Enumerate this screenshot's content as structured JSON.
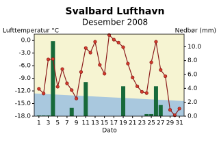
{
  "chart_data": {
    "type": "combo",
    "title": "Svalbard Lufthavn",
    "subtitle": "Desember 2008",
    "y_label": "Lufttemperatur °C",
    "y2_label": "Nedbør (mm)",
    "x_label": "Dato",
    "x": [
      1,
      2,
      3,
      4,
      5,
      6,
      7,
      8,
      9,
      10,
      11,
      12,
      13,
      14,
      15,
      16,
      17,
      18,
      19,
      20,
      21,
      22,
      23,
      24,
      25,
      26,
      27,
      28,
      29,
      30,
      31
    ],
    "xlim": [
      0,
      32
    ],
    "xticks": [
      1,
      3,
      5,
      7,
      9,
      11,
      13,
      15,
      17,
      19,
      21,
      23,
      25,
      27,
      29,
      31
    ],
    "ylim": [
      -18,
      1.5
    ],
    "yticks": [
      {
        "value": 0,
        "label": "0.0"
      },
      {
        "value": -3,
        "label": "-3.0"
      },
      {
        "value": -6,
        "label": "-6.0"
      },
      {
        "value": -9,
        "label": "-9.0"
      },
      {
        "value": -12,
        "label": "-12.0"
      },
      {
        "value": -15,
        "label": "-15.0"
      },
      {
        "value": -18,
        "label": "-18.0"
      }
    ],
    "y2lim": [
      0,
      11.8
    ],
    "y2ticks": [
      {
        "value": 0,
        "label": "0.0"
      },
      {
        "value": 2,
        "label": "2.0"
      },
      {
        "value": 4,
        "label": "4.0"
      },
      {
        "value": 6,
        "label": "6.0"
      },
      {
        "value": 8,
        "label": "8.0"
      },
      {
        "value": 10,
        "label": "10.0"
      }
    ],
    "background": "#f6f4d2",
    "band": {
      "x": [
        0,
        32
      ],
      "values": [
        -12.6,
        -14.4
      ],
      "color": "#a9c8de"
    },
    "series": [
      {
        "type": "bar",
        "axis": "y2",
        "color": "#17693a",
        "values": [
          0.1,
          0.1,
          0.1,
          10.8,
          0,
          0,
          0,
          1.2,
          0,
          0,
          4.9,
          0,
          0,
          0,
          0,
          0,
          0,
          0,
          4.3,
          0,
          0,
          0,
          0,
          0.3,
          0.3,
          4.3,
          1.6,
          0,
          0,
          0,
          0
        ]
      },
      {
        "type": "line",
        "color": "#8b1a1a",
        "values": [
          -11.5,
          -12.6,
          -4.5,
          -4.4,
          -11.0,
          -6.8,
          -10.2,
          -11.8,
          -13.8,
          -7.5,
          -1.8,
          -2.9,
          -0.3,
          -5.8,
          -7.9,
          1.3,
          0.2,
          -0.5,
          -1.6,
          -5.5,
          -8.8,
          -10.9,
          -12.2,
          -12.5,
          -5.2,
          -0.3,
          -7.0,
          -8.5,
          -16.5,
          -17.8,
          -16.2
        ]
      }
    ]
  }
}
